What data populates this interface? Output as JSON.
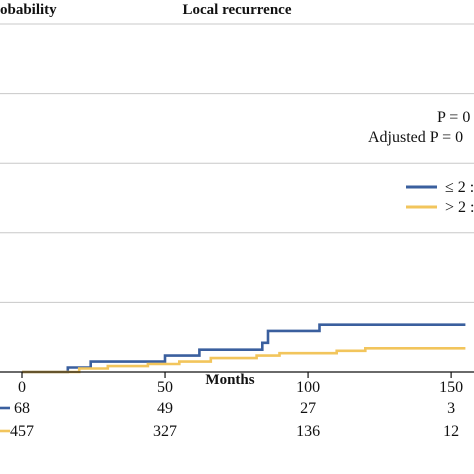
{
  "chart_data": {
    "type": "line",
    "title": "Local recurrence",
    "ylabel": "obability",
    "xlabel": "Months",
    "xlim": [
      0,
      160
    ],
    "x_ticks": [
      0,
      50,
      100,
      150
    ],
    "ylim": [
      0,
      1
    ],
    "y_gridlines": [
      0.2,
      0.4,
      0.6,
      0.8,
      1.0
    ],
    "grid": true,
    "legend_position": "right",
    "annotations": [
      "P = 0",
      "Adjusted P = 0"
    ],
    "series": [
      {
        "name": "≤ 2 :",
        "color": "#3a5f9e",
        "steps": [
          [
            0,
            0
          ],
          [
            16,
            0
          ],
          [
            16,
            0.013
          ],
          [
            24,
            0.013
          ],
          [
            24,
            0.03
          ],
          [
            50,
            0.03
          ],
          [
            50,
            0.047
          ],
          [
            62,
            0.047
          ],
          [
            62,
            0.064
          ],
          [
            84,
            0.064
          ],
          [
            84,
            0.084
          ],
          [
            86,
            0.084
          ],
          [
            86,
            0.118
          ],
          [
            104,
            0.118
          ],
          [
            104,
            0.136
          ],
          [
            155,
            0.136
          ]
        ]
      },
      {
        "name": "> 2 :",
        "color": "#f2c55c",
        "steps": [
          [
            0,
            0
          ],
          [
            20,
            0
          ],
          [
            20,
            0.01
          ],
          [
            30,
            0.01
          ],
          [
            30,
            0.017
          ],
          [
            44,
            0.017
          ],
          [
            44,
            0.023
          ],
          [
            55,
            0.023
          ],
          [
            55,
            0.03
          ],
          [
            66,
            0.03
          ],
          [
            66,
            0.04
          ],
          [
            82,
            0.04
          ],
          [
            82,
            0.047
          ],
          [
            90,
            0.047
          ],
          [
            90,
            0.054
          ],
          [
            110,
            0.054
          ],
          [
            110,
            0.061
          ],
          [
            120,
            0.061
          ],
          [
            120,
            0.068
          ],
          [
            155,
            0.068
          ]
        ]
      }
    ],
    "at_risk": {
      "times": [
        0,
        50,
        100,
        150
      ],
      "rows": [
        {
          "color": "#3a5f9e",
          "values": [
            "68",
            "49",
            "27",
            "3"
          ]
        },
        {
          "color": "#f2c55c",
          "values": [
            "457",
            "327",
            "136",
            "12"
          ]
        }
      ]
    }
  }
}
